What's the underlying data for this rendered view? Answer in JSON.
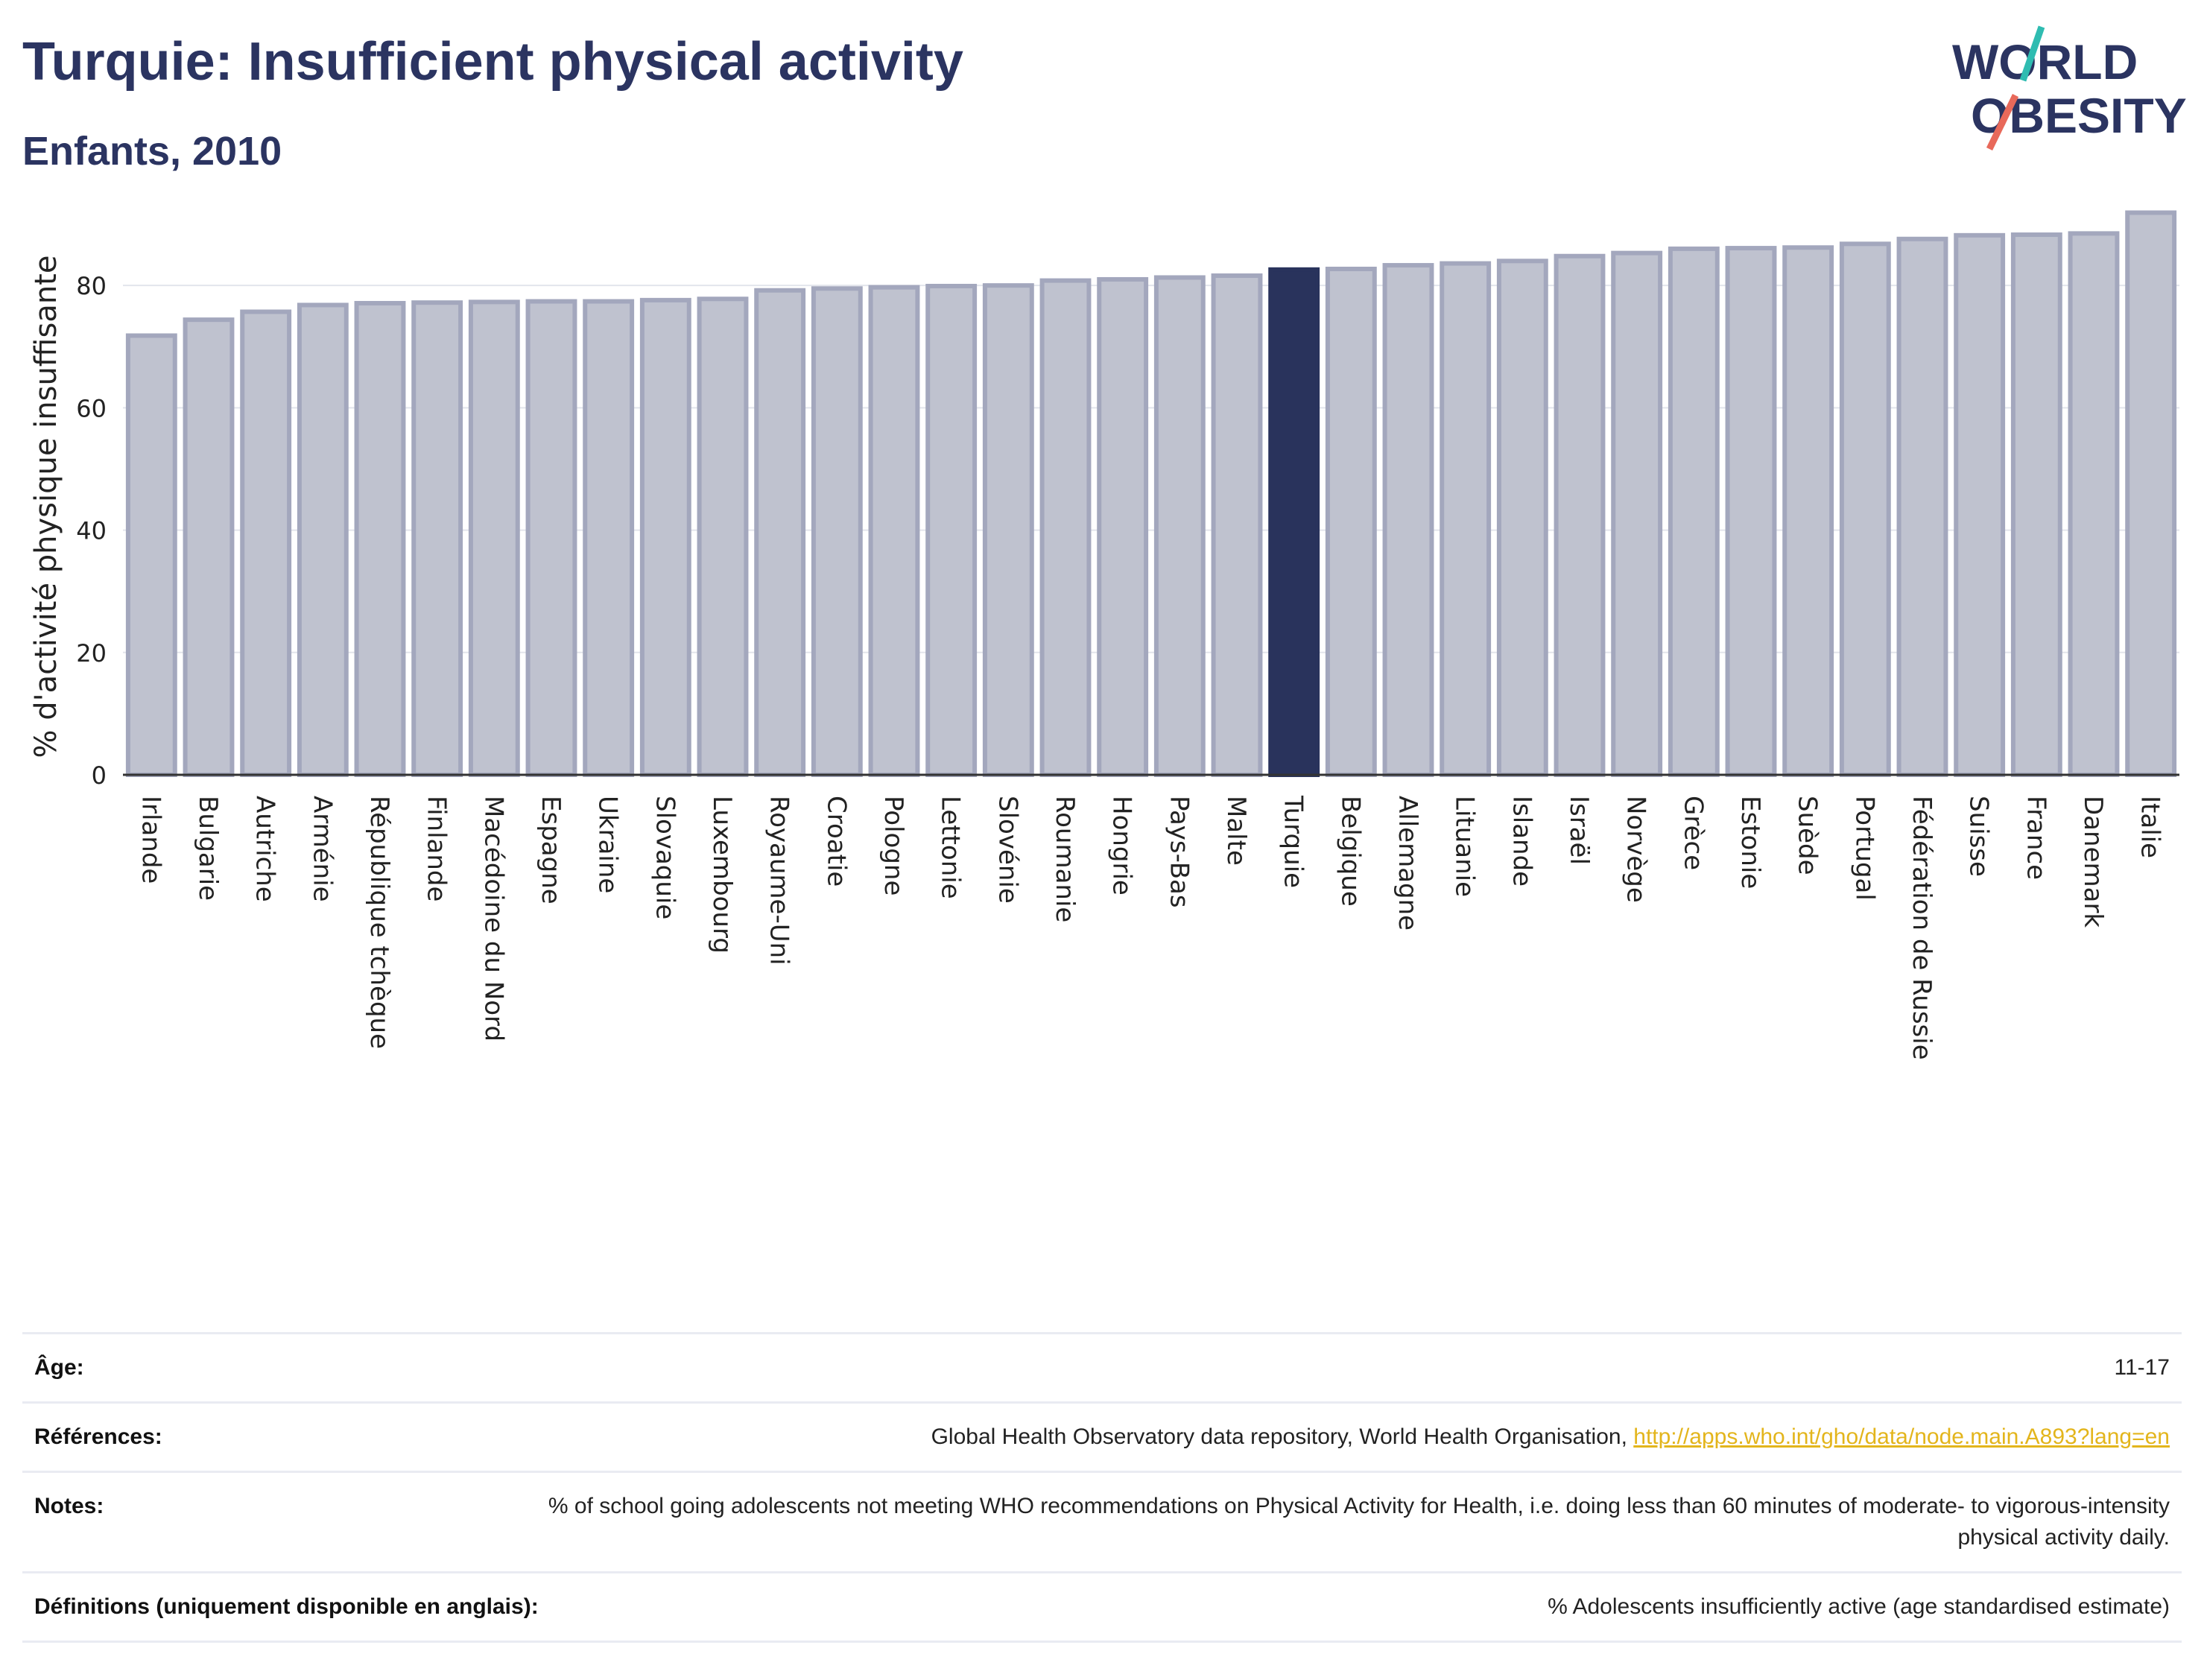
{
  "header": {
    "title": "Turquie: Insufficient physical activity",
    "subtitle": "Enfants, 2010"
  },
  "logo": {
    "line1": "WORLD",
    "line2": "OBESITY",
    "colors": {
      "text": "#2b3461",
      "slash_top": "#2fbcb1",
      "slash_bottom": "#e8695a"
    }
  },
  "colors": {
    "bar": "#bfc2cf",
    "bar_border": "#a3a7bd",
    "highlight": "#29335c",
    "axis": "#333333",
    "grid": "#e3e5ec"
  },
  "chart_data": {
    "type": "bar",
    "ylabel": "% d'activité physique insuffisante",
    "ylim": [
      0,
      95
    ],
    "yticks": [
      0,
      20,
      40,
      60,
      80
    ],
    "grid": true,
    "highlight": "Turquie",
    "categories": [
      "Irlande",
      "Bulgarie",
      "Autriche",
      "Arménie",
      "République tchèque",
      "Finlande",
      "Macédoine du Nord",
      "Espagne",
      "Ukraine",
      "Slovaquie",
      "Luxembourg",
      "Royaume-Uni",
      "Croatie",
      "Pologne",
      "Lettonie",
      "Slovénie",
      "Roumanie",
      "Hongrie",
      "Pays-Bas",
      "Malte",
      "Turquie",
      "Belgique",
      "Allemagne",
      "Lituanie",
      "Islande",
      "Israël",
      "Norvège",
      "Grèce",
      "Estonie",
      "Suède",
      "Portugal",
      "Fédération de Russie",
      "Suisse",
      "France",
      "Danemark",
      "Italie"
    ],
    "values": [
      71.8,
      74.4,
      75.7,
      76.8,
      77.1,
      77.2,
      77.3,
      77.4,
      77.4,
      77.6,
      77.8,
      79.2,
      79.5,
      79.7,
      79.9,
      80.0,
      80.8,
      81.0,
      81.3,
      81.6,
      82.6,
      82.7,
      83.3,
      83.6,
      84.0,
      84.8,
      85.3,
      86.0,
      86.1,
      86.2,
      86.8,
      87.6,
      88.2,
      88.3,
      88.5,
      91.9
    ]
  },
  "info": [
    {
      "label": "Âge:",
      "value": "11-17"
    },
    {
      "label": "Références:",
      "value": "Global Health Observatory data repository, World Health Organisation, ",
      "link": "http://apps.who.int/gho/data/node.main.A893?lang=en"
    },
    {
      "label": "Notes:",
      "value": "% of school going adolescents not meeting WHO recommendations on Physical Activity for Health, i.e. doing less than 60 minutes of moderate- to vigorous-intensity physical activity daily."
    },
    {
      "label": "Définitions (uniquement disponible en anglais):",
      "value": "% Adolescents insufficiently active (age standardised estimate)"
    }
  ]
}
